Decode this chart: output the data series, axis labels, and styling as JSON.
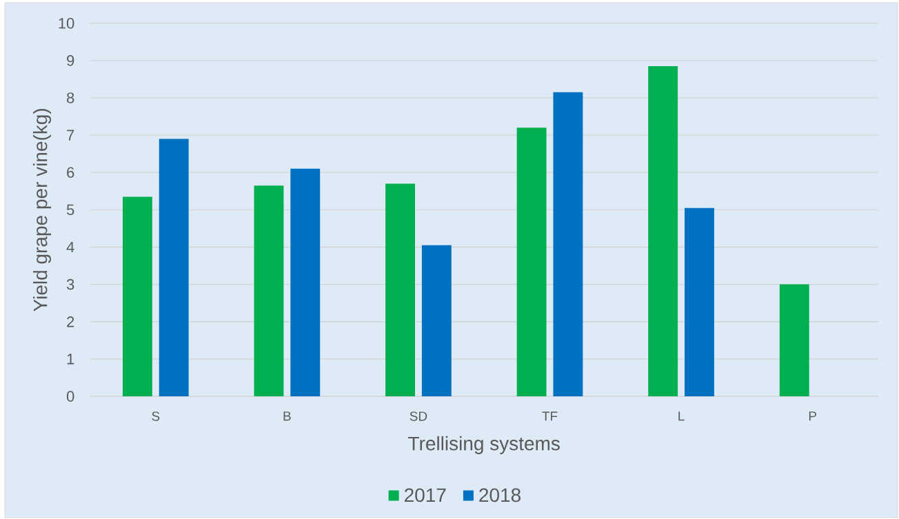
{
  "chart_data": {
    "type": "bar",
    "xlabel": "Trellising systems",
    "ylabel": "Yield grape per vine(kg)",
    "categories": [
      "S",
      "B",
      "SD",
      "TF",
      "L",
      "P"
    ],
    "series": [
      {
        "name": "2017",
        "color": "#00b050",
        "values": [
          5.35,
          5.65,
          5.7,
          7.2,
          8.85,
          3
        ]
      },
      {
        "name": "2018",
        "color": "#0070c0",
        "values": [
          6.9,
          6.1,
          4.05,
          8.15,
          5.05,
          null
        ]
      }
    ],
    "ylim": [
      0,
      10
    ],
    "yticks": [
      0,
      1,
      2,
      3,
      4,
      5,
      6,
      7,
      8,
      9,
      10
    ],
    "grid": "y",
    "legend": "bottom"
  }
}
